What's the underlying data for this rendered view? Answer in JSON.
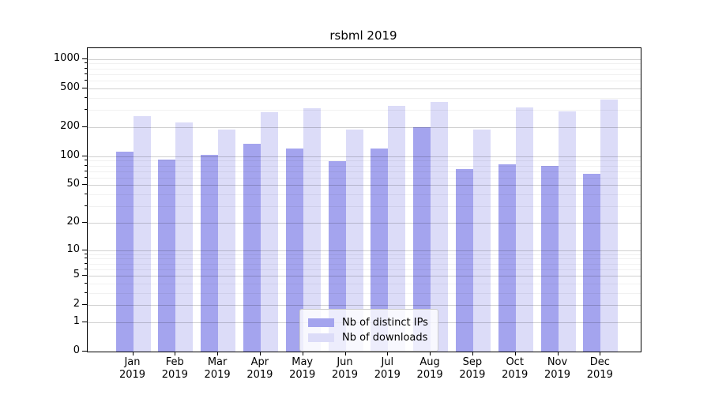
{
  "title": "rsbml 2019",
  "chart_data": {
    "type": "bar",
    "title": "rsbml 2019",
    "categories": [
      "Jan 2019",
      "Feb 2019",
      "Mar 2019",
      "Apr 2019",
      "May 2019",
      "Jun 2019",
      "Jul 2019",
      "Aug 2019",
      "Sep 2019",
      "Oct 2019",
      "Nov 2019",
      "Dec 2019"
    ],
    "series": [
      {
        "name": "Nb of distinct IPs",
        "color": "#a4a4ee",
        "values": [
          112,
          93,
          103,
          135,
          121,
          89,
          120,
          200,
          74,
          83,
          80,
          66
        ]
      },
      {
        "name": "Nb of downloads",
        "color": "#dcdcf8",
        "values": [
          260,
          225,
          190,
          285,
          313,
          190,
          330,
          362,
          190,
          316,
          290,
          383
        ]
      }
    ],
    "yscale": "log10(value+1)",
    "ylim": [
      0,
      1000
    ],
    "yticks": [
      0,
      1,
      2,
      5,
      10,
      20,
      50,
      100,
      200,
      500,
      1000
    ],
    "minor_gridlines": [
      3,
      4,
      6,
      7,
      8,
      9,
      30,
      40,
      60,
      70,
      80,
      90,
      300,
      400,
      600,
      700,
      800,
      900
    ],
    "grid": true,
    "legend_position": "lower center inside plot",
    "xlabel": "",
    "ylabel": ""
  },
  "colors": {
    "background": "#ffffff",
    "bar_distinct_ips": "#a4a4ee",
    "bar_downloads": "#dcdcf8",
    "axis": "#000000",
    "grid_major": "#d2d2d2",
    "grid_minor": "#efefef",
    "legend_border": "#cccccc"
  }
}
